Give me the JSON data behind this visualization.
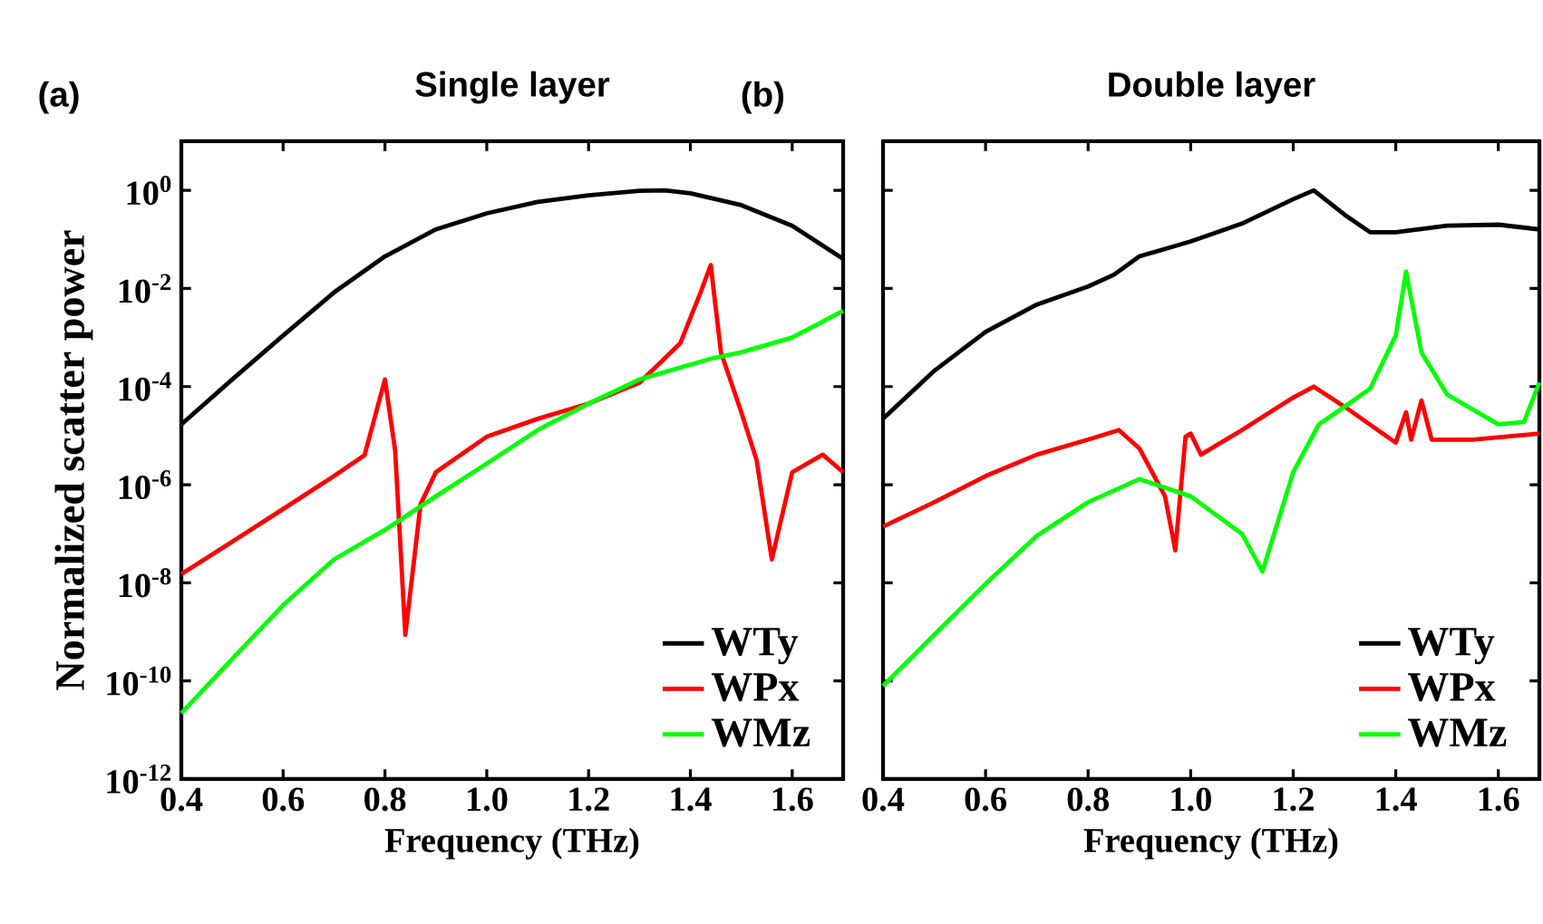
{
  "chart_data": [
    {
      "type": "line",
      "title": "Single layer",
      "annotations": [
        "(a)"
      ],
      "xlabel": "Frequency (THz)",
      "ylabel": "Normalized scatter power",
      "log": "y",
      "legend": "bottom right",
      "xlim": [
        0.4,
        1.7
      ],
      "ylim": [
        1e-12,
        10
      ],
      "xticks": [
        0.4,
        0.6,
        0.8,
        {
          "value": 1.0,
          "label": "1.0"
        },
        1.2,
        1.4,
        1.6
      ],
      "yticks": [
        {
          "value": 1,
          "label": "10$^{0}$"
        },
        {
          "value": 0.01,
          "label": "10$^{-2}$"
        },
        {
          "value": 0.0001,
          "label": "10$^{-4}$"
        },
        {
          "value": 1e-06,
          "label": "10$^{-6}$"
        },
        {
          "value": 1e-08,
          "label": "10$^{-8}$"
        },
        {
          "value": 1e-10,
          "label": "10$^{-10}$"
        },
        {
          "value": 1e-12,
          "label": "10$^{-12}$"
        }
      ],
      "series": [
        {
          "name": "WTy",
          "color": "#000000",
          "x": [
            0.4,
            0.5,
            0.6,
            0.7,
            0.8,
            0.9,
            1.0,
            1.1,
            1.2,
            1.3,
            1.35,
            1.4,
            1.5,
            1.6,
            1.7
          ],
          "values": [
            1.7e-05,
            0.00014,
            0.0011,
            0.0083,
            0.045,
            0.16,
            0.34,
            0.58,
            0.79,
            0.98,
            1.0,
            0.87,
            0.5,
            0.19,
            0.04
          ]
        },
        {
          "name": "WPx",
          "color": "#ff0000",
          "x": [
            0.4,
            0.5,
            0.6,
            0.7,
            0.76,
            0.8,
            0.82,
            0.84,
            0.87,
            0.9,
            1.0,
            1.1,
            1.2,
            1.3,
            1.38,
            1.42,
            1.44,
            1.46,
            1.5,
            1.53,
            1.56,
            1.6,
            1.66,
            1.7
          ],
          "values": [
            1.5e-08,
            6.9e-08,
            3.2e-07,
            1.5e-06,
            4e-06,
            0.00014,
            5e-06,
            8.7e-10,
            4e-07,
            1.8e-06,
            9.5e-06,
            2.2e-05,
            4.5e-05,
            0.00012,
            0.00076,
            0.0083,
            0.03,
            0.0005,
            3e-05,
            3.2e-06,
            3e-08,
            1.8e-06,
            4.1e-06,
            1.8e-06
          ]
        },
        {
          "name": "WMz",
          "color": "#00ff00",
          "x": [
            0.4,
            0.5,
            0.6,
            0.7,
            0.8,
            0.9,
            1.0,
            1.1,
            1.2,
            1.3,
            1.44,
            1.5,
            1.6,
            1.7
          ],
          "values": [
            2.2e-11,
            2.8e-10,
            3.5e-09,
            3e-08,
            1.2e-07,
            5.8e-07,
            2.7e-06,
            1.3e-05,
            4.5e-05,
            0.00014,
            0.00037,
            0.0005,
            0.001,
            0.0035
          ]
        }
      ]
    },
    {
      "type": "line",
      "title": "Double layer",
      "annotations": [
        "(b)"
      ],
      "xlabel": "Frequency (THz)",
      "log": "y",
      "legend": "bottom right",
      "tick_labels": "x",
      "xlim": [
        0.4,
        1.68
      ],
      "ylim": [
        1e-12,
        10
      ],
      "xticks": [
        0.4,
        0.6,
        0.8,
        {
          "value": 1.0,
          "label": "1.0"
        },
        1.2,
        1.4,
        1.6
      ],
      "yticks": [
        {
          "value": 1,
          "label": null
        },
        {
          "value": 0.01,
          "label": null
        },
        {
          "value": 0.0001,
          "label": null
        },
        {
          "value": 1e-06,
          "label": null
        },
        {
          "value": 1e-08,
          "label": null
        },
        {
          "value": 1e-10,
          "label": null
        },
        {
          "value": 1e-12,
          "label": null
        }
      ],
      "series": [
        {
          "name": "WTy",
          "color": "#000000",
          "x": [
            0.4,
            0.5,
            0.6,
            0.7,
            0.8,
            0.85,
            0.9,
            1.0,
            1.1,
            1.2,
            1.24,
            1.3,
            1.35,
            1.4,
            1.5,
            1.6,
            1.68
          ],
          "values": [
            2.2e-05,
            0.00021,
            0.0013,
            0.0047,
            0.011,
            0.019,
            0.045,
            0.091,
            0.21,
            0.66,
            1.0,
            0.32,
            0.14,
            0.14,
            0.19,
            0.2,
            0.16
          ]
        },
        {
          "name": "WPx",
          "color": "#ff0000",
          "x": [
            0.4,
            0.5,
            0.6,
            0.7,
            0.8,
            0.86,
            0.9,
            0.95,
            0.97,
            0.99,
            1.0,
            1.02,
            1.1,
            1.2,
            1.24,
            1.3,
            1.4,
            1.42,
            1.43,
            1.45,
            1.47,
            1.55,
            1.68
          ],
          "values": [
            1.4e-07,
            4.4e-07,
            1.5e-06,
            4.1e-06,
            8.3e-06,
            1.3e-05,
            5.5e-06,
            5.8e-07,
            4.6e-08,
            9.5e-06,
            1.1e-05,
            4.1e-06,
            1.3e-05,
            6e-05,
            0.0001,
            3.9e-05,
            7.2e-06,
            3e-05,
            8.3e-06,
            5.2e-05,
            8.3e-06,
            8.3e-06,
            1.1e-05
          ]
        },
        {
          "name": "WMz",
          "color": "#00ff00",
          "x": [
            0.4,
            0.5,
            0.6,
            0.7,
            0.8,
            0.9,
            1.0,
            1.1,
            1.14,
            1.2,
            1.25,
            1.3,
            1.35,
            1.4,
            1.42,
            1.45,
            1.5,
            1.6,
            1.65,
            1.68
          ],
          "values": [
            7.9e-11,
            8.7e-10,
            9.5e-09,
            9.1e-08,
            4.4e-07,
            1.3e-06,
            5.8e-07,
            1e-07,
            1.7e-08,
            1.8e-06,
            1.7e-05,
            3.9e-05,
            9.1e-05,
            0.0011,
            0.022,
            0.0005,
            6.9e-05,
            1.7e-05,
            1.9e-05,
            0.00012
          ]
        }
      ]
    }
  ]
}
